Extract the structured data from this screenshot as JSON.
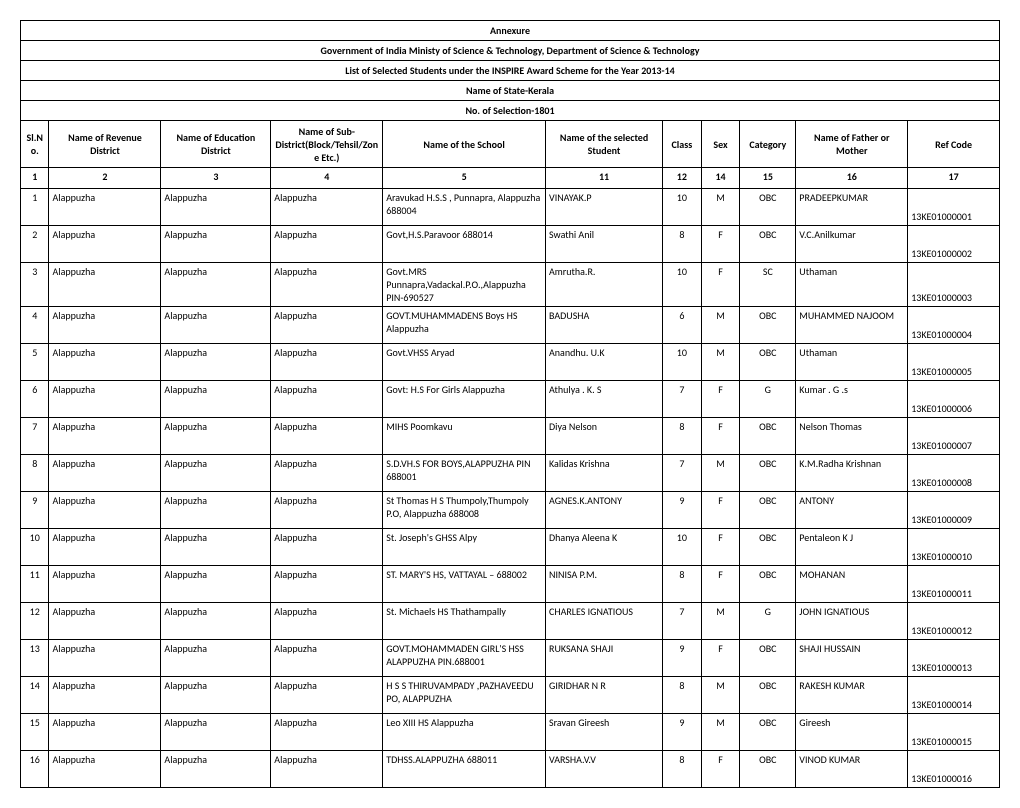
{
  "headers": {
    "annexure": "Annexure",
    "ministry": "Government of India Ministy of Science & Technology, Department of Science & Technology",
    "list": "List of Selected Students under the INSPIRE Award Scheme for the Year 2013-14",
    "state": "Name of State-Kerala",
    "selection": "No. of Selection-1801"
  },
  "columns": {
    "slno": "Sl.No.",
    "revenue": "Name of Revenue District",
    "education": "Name of Education District",
    "subdistrict": "Name of Sub-District(Block/Tehsil/Zone Etc.)",
    "school": "Name of the School",
    "student": "Name of the selected Student",
    "class": "Class",
    "sex": "Sex",
    "category": "Category",
    "father": "Name of Father or Mother",
    "ref": "Ref Code"
  },
  "colnums": {
    "slno": "1",
    "revenue": "2",
    "education": "3",
    "subdistrict": "4",
    "school": "5",
    "student": "11",
    "class": "12",
    "sex": "14",
    "category": "15",
    "father": "16",
    "ref": "17"
  },
  "rows": [
    {
      "slno": "1",
      "rev": "Alappuzha",
      "edu": "Alappuzha",
      "sub": "Alappuzha",
      "school": "Aravukad H.S.S , Punnapra, Alappuzha 688004",
      "stud": "VINAYAK.P",
      "class": "10",
      "sex": "M",
      "cat": "OBC",
      "father": "PRADEEPKUMAR",
      "ref": "13KE01000001"
    },
    {
      "slno": "2",
      "rev": "Alappuzha",
      "edu": "Alappuzha",
      "sub": "Alappuzha",
      "school": "Govt,H.S.Paravoor 688014",
      "stud": "Swathi Anil",
      "class": "8",
      "sex": "F",
      "cat": "OBC",
      "father": "V.C.Anilkumar",
      "ref": "13KE01000002"
    },
    {
      "slno": "3",
      "rev": "Alappuzha",
      "edu": "Alappuzha",
      "sub": "Alappuzha",
      "school": "Govt.MRS Punnapra,Vadackal.P.O.,Alappuzha PIN-690527",
      "stud": "Amrutha.R.",
      "class": "10",
      "sex": "F",
      "cat": "SC",
      "father": "Uthaman",
      "ref": "13KE01000003"
    },
    {
      "slno": "4",
      "rev": "Alappuzha",
      "edu": "Alappuzha",
      "sub": "Alappuzha",
      "school": "GOVT.MUHAMMADENS Boys HS Alappuzha",
      "stud": "BADUSHA",
      "class": "6",
      "sex": "M",
      "cat": "OBC",
      "father": "MUHAMMED NAJOOM",
      "ref": "13KE01000004"
    },
    {
      "slno": "5",
      "rev": "Alappuzha",
      "edu": "Alappuzha",
      "sub": "Alappuzha",
      "school": "Govt.VHSS Aryad",
      "stud": "Anandhu. U.K",
      "class": "10",
      "sex": "M",
      "cat": "OBC",
      "father": "Uthaman",
      "ref": "13KE01000005"
    },
    {
      "slno": "6",
      "rev": "Alappuzha",
      "edu": "Alappuzha",
      "sub": "Alappuzha",
      "school": "Govt: H.S For Girls Alappuzha",
      "stud": "Athulya . K. S",
      "class": "7",
      "sex": "F",
      "cat": "G",
      "father": "Kumar . G .s",
      "ref": "13KE01000006"
    },
    {
      "slno": "7",
      "rev": "Alappuzha",
      "edu": "Alappuzha",
      "sub": "Alappuzha",
      "school": "MIHS Poomkavu",
      "stud": "Diya Nelson",
      "class": "8",
      "sex": "F",
      "cat": "OBC",
      "father": "Nelson Thomas",
      "ref": "13KE01000007"
    },
    {
      "slno": "8",
      "rev": "Alappuzha",
      "edu": "Alappuzha",
      "sub": "Alappuzha",
      "school": "S.D.VH.S FOR BOYS,ALAPPUZHA PIN 688001",
      "stud": "Kalidas Krishna",
      "class": "7",
      "sex": "M",
      "cat": "OBC",
      "father": "K.M.Radha Krishnan",
      "ref": "13KE01000008"
    },
    {
      "slno": "9",
      "rev": "Alappuzha",
      "edu": "Alappuzha",
      "sub": "Alappuzha",
      "school": "St Thomas H S Thumpoly,Thumpoly P.O, Alappuzha 688008",
      "stud": "AGNES.K.ANTONY",
      "class": "9",
      "sex": "F",
      "cat": "OBC",
      "father": "ANTONY",
      "ref": "13KE01000009"
    },
    {
      "slno": "10",
      "rev": "Alappuzha",
      "edu": "Alappuzha",
      "sub": "Alappuzha",
      "school": "St. Joseph's GHSS Alpy",
      "stud": "Dhanya Aleena K",
      "class": "10",
      "sex": "F",
      "cat": "OBC",
      "father": "Pentaleon K J",
      "ref": "13KE01000010"
    },
    {
      "slno": "11",
      "rev": "Alappuzha",
      "edu": "Alappuzha",
      "sub": "Alappuzha",
      "school": "ST. MARY'S HS, VATTAYAL – 688002",
      "stud": "NINISA P.M.",
      "class": "8",
      "sex": "F",
      "cat": "OBC",
      "father": "MOHANAN",
      "ref": "13KE01000011"
    },
    {
      "slno": "12",
      "rev": "Alappuzha",
      "edu": "Alappuzha",
      "sub": "Alappuzha",
      "school": "St. Michaels HS Thathampally",
      "stud": "CHARLES IGNATIOUS",
      "class": "7",
      "sex": "M",
      "cat": "G",
      "father": "JOHN IGNATIOUS",
      "ref": "13KE01000012"
    },
    {
      "slno": "13",
      "rev": "Alappuzha",
      "edu": "Alappuzha",
      "sub": "Alappuzha",
      "school": "GOVT.MOHAMMADEN GIRL'S HSS ALAPPUZHA PIN.688001",
      "stud": "RUKSANA SHAJI",
      "class": "9",
      "sex": "F",
      "cat": "OBC",
      "father": "SHAJI HUSSAIN",
      "ref": "13KE01000013"
    },
    {
      "slno": "14",
      "rev": "Alappuzha",
      "edu": "Alappuzha",
      "sub": "Alappuzha",
      "school": "H S S THIRUVAMPADY ,PAZHAVEEDU PO, ALAPPUZHA",
      "stud": "GIRIDHAR N R",
      "class": "8",
      "sex": "M",
      "cat": "OBC",
      "father": "RAKESH KUMAR",
      "ref": "13KE01000014"
    },
    {
      "slno": "15",
      "rev": "Alappuzha",
      "edu": "Alappuzha",
      "sub": "Alappuzha",
      "school": "Leo XIII HS Alappuzha",
      "stud": "Sravan Gireesh",
      "class": "9",
      "sex": "M",
      "cat": "OBC",
      "father": "Gireesh",
      "ref": "13KE01000015"
    },
    {
      "slno": "16",
      "rev": "Alappuzha",
      "edu": "Alappuzha",
      "sub": "Alappuzha",
      "school": "TDHSS.ALAPPUZHA 688011",
      "stud": "VARSHA.V.V",
      "class": "8",
      "sex": "F",
      "cat": "OBC",
      "father": "VINOD KUMAR",
      "ref": "13KE01000016"
    }
  ]
}
